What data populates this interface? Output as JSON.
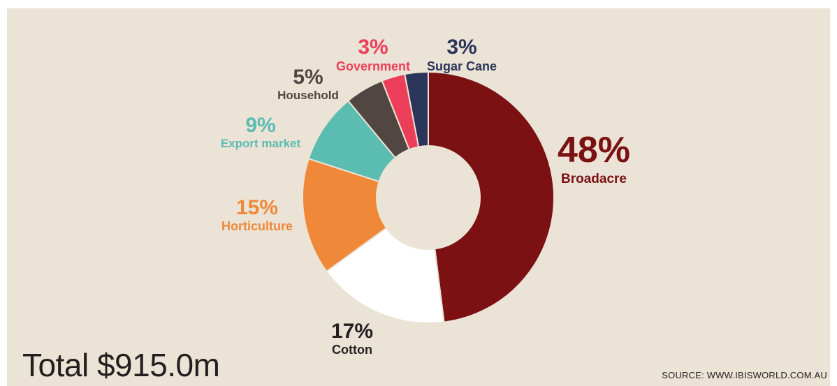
{
  "chart_data": {
    "type": "pie",
    "donut": true,
    "slices": [
      {
        "label": "Broadacre",
        "pct_label": "48%",
        "value": 48,
        "color": "#7b1113"
      },
      {
        "label": "Cotton",
        "pct_label": "17%",
        "value": 17,
        "color": "#ffffff"
      },
      {
        "label": "Horticulture",
        "pct_label": "15%",
        "value": 15,
        "color": "#f0883a"
      },
      {
        "label": "Export market",
        "pct_label": "9%",
        "value": 9,
        "color": "#5bbcb1"
      },
      {
        "label": "Household",
        "pct_label": "5%",
        "value": 5,
        "color": "#524643"
      },
      {
        "label": "Government",
        "pct_label": "3%",
        "value": 3,
        "color": "#ec3e58"
      },
      {
        "label": "Sugar Cane",
        "pct_label": "3%",
        "value": 3,
        "color": "#2b3559"
      }
    ],
    "label_colors": {
      "Broadacre": "#7b1113",
      "Cotton": "#231f20",
      "Horticulture": "#f0883a",
      "Export market": "#5bbcb1",
      "Household": "#524643",
      "Government": "#ec3e58",
      "Sugar Cane": "#2b3559"
    },
    "legend": "none"
  },
  "footer": {
    "total": "Total $915.0m",
    "source": "SOURCE: WWW.IBISWORLD.COM.AU"
  }
}
